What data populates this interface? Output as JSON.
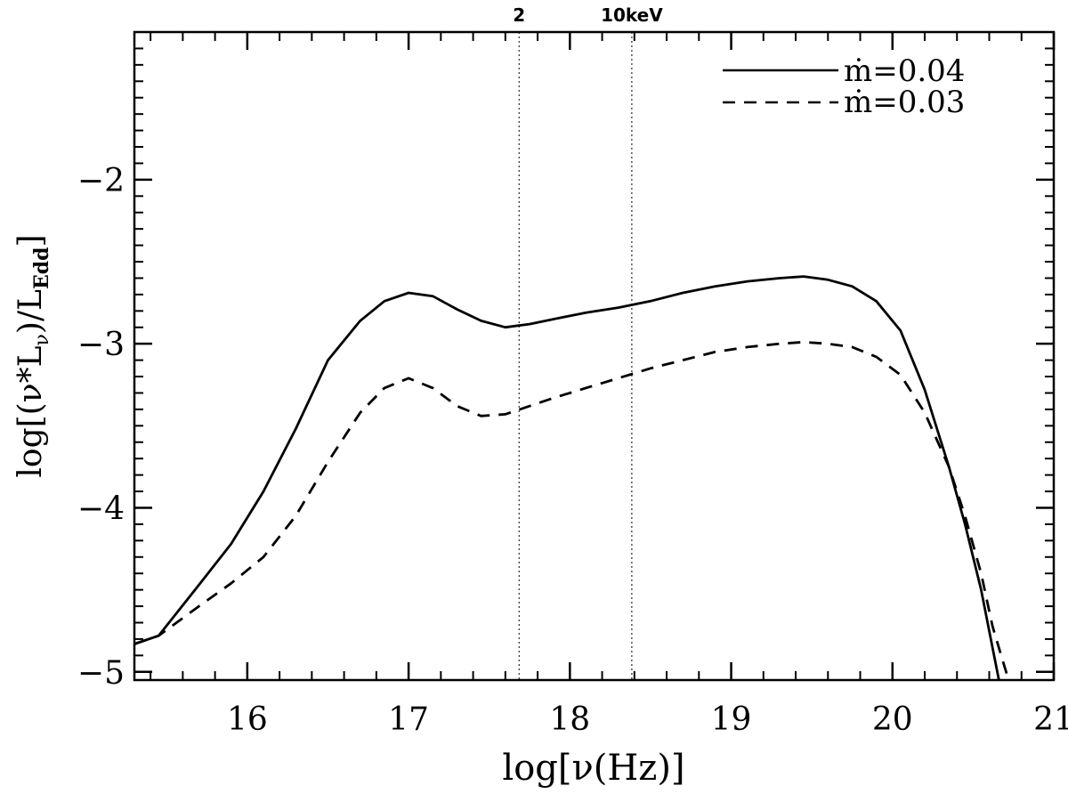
{
  "chart_data": {
    "type": "line",
    "xlabel": "log[ν(Hz)]",
    "ylabel": {
      "main": "log[(ν*L",
      "sub1": "ν",
      "mid": ")/L",
      "sub2": "Edd",
      "end": "]"
    },
    "xlim": [
      15.3,
      21
    ],
    "ylim": [
      -5.05,
      -1.1
    ],
    "x_ticks": [
      16,
      17,
      18,
      19,
      20,
      21
    ],
    "y_ticks": [
      -2,
      -3,
      -4,
      -5
    ],
    "x_tick_labels": [
      "16",
      "17",
      "18",
      "19",
      "20",
      "21"
    ],
    "y_tick_labels": [
      "−2",
      "−3",
      "−4",
      "−5"
    ],
    "vertical_markers": [
      {
        "x": 17.685,
        "label": "2"
      },
      {
        "x": 18.384,
        "label": "10keV"
      }
    ],
    "legend_position": "top-right",
    "series": [
      {
        "name": "ṁ=0.04",
        "style": "solid",
        "x": [
          15.3,
          15.45,
          15.7,
          15.9,
          16.1,
          16.3,
          16.5,
          16.7,
          16.85,
          17.0,
          17.15,
          17.3,
          17.45,
          17.6,
          17.75,
          17.9,
          18.1,
          18.3,
          18.5,
          18.7,
          18.9,
          19.1,
          19.3,
          19.45,
          19.6,
          19.75,
          19.9,
          20.05,
          20.2,
          20.35,
          20.45,
          20.55,
          20.62,
          20.66
        ],
        "y": [
          -4.83,
          -4.78,
          -4.47,
          -4.22,
          -3.9,
          -3.52,
          -3.1,
          -2.86,
          -2.74,
          -2.69,
          -2.71,
          -2.79,
          -2.86,
          -2.9,
          -2.88,
          -2.85,
          -2.81,
          -2.78,
          -2.74,
          -2.69,
          -2.65,
          -2.62,
          -2.6,
          -2.59,
          -2.61,
          -2.65,
          -2.74,
          -2.92,
          -3.28,
          -3.75,
          -4.1,
          -4.5,
          -4.85,
          -5.05
        ]
      },
      {
        "name": "ṁ=0.03",
        "style": "dashed",
        "x": [
          15.3,
          15.45,
          15.7,
          15.9,
          16.1,
          16.3,
          16.5,
          16.7,
          16.85,
          17.0,
          17.15,
          17.3,
          17.45,
          17.6,
          17.75,
          17.9,
          18.1,
          18.3,
          18.5,
          18.7,
          18.9,
          19.1,
          19.3,
          19.45,
          19.6,
          19.75,
          19.9,
          20.05,
          20.2,
          20.35,
          20.45,
          20.55,
          20.62,
          20.68,
          20.72
        ],
        "y": [
          -4.83,
          -4.78,
          -4.6,
          -4.46,
          -4.3,
          -4.05,
          -3.72,
          -3.42,
          -3.27,
          -3.21,
          -3.27,
          -3.38,
          -3.44,
          -3.43,
          -3.38,
          -3.33,
          -3.27,
          -3.21,
          -3.15,
          -3.1,
          -3.05,
          -3.02,
          -3.0,
          -2.99,
          -3.0,
          -3.02,
          -3.08,
          -3.19,
          -3.42,
          -3.75,
          -4.05,
          -4.4,
          -4.72,
          -4.92,
          -5.05
        ]
      }
    ]
  }
}
